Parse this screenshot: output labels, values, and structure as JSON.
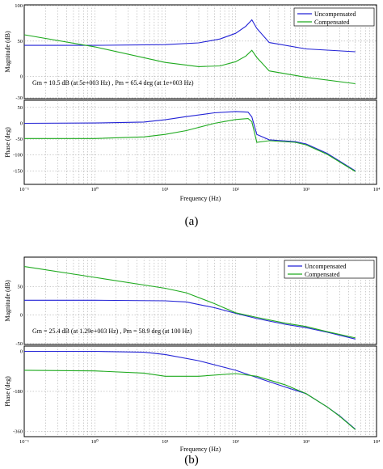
{
  "colors": {
    "uncompensated": "#2323d6",
    "compensated": "#1faa1f"
  },
  "chart_data": [
    {
      "id": "a",
      "caption": "(a)",
      "type": "line",
      "xscale": "log",
      "xlim": [
        0.1,
        10000
      ],
      "xticks": [
        {
          "v": 0.1,
          "label": "10⁻¹"
        },
        {
          "v": 1,
          "label": "10⁰"
        },
        {
          "v": 10,
          "label": "10¹"
        },
        {
          "v": 100,
          "label": "10²"
        },
        {
          "v": 1000,
          "label": "10³"
        },
        {
          "v": 10000,
          "label": "10⁴"
        }
      ],
      "xlabel": "Frequency  (Hz)",
      "annotation": "Gm = 10.5 dB (at 5e+003 Hz) ,  Pm = 65.4 deg (at 1e+003 Hz)",
      "legend": {
        "placement": "top-right",
        "entries": [
          "Uncompensated",
          "Compensated"
        ]
      },
      "magnitude": {
        "ylabel": "Magnitude (dB)",
        "ylim": [
          -30,
          100
        ],
        "yticks": [
          -30,
          0,
          50,
          100
        ],
        "series": [
          {
            "name": "Uncompensated",
            "x": [
              0.1,
              1,
              10,
              30,
              60,
              100,
              140,
              170,
              200,
              300,
              1000,
              5000
            ],
            "y": [
              44,
              44,
              45,
              47.5,
              53,
              61,
              71,
              80,
              68,
              48,
              39,
              35
            ]
          },
          {
            "name": "Compensated",
            "x": [
              0.1,
              1,
              10,
              30,
              60,
              100,
              140,
              170,
              200,
              300,
              1000,
              5000
            ],
            "y": [
              59,
              42,
              20,
              14,
              15,
              21,
              29,
              37,
              27,
              8,
              -1,
              -10
            ]
          }
        ]
      },
      "phase": {
        "ylabel": "Phase (deg)",
        "ylim": [
          -190,
          70
        ],
        "yticks": [
          -150,
          -100,
          -50,
          0,
          50
        ],
        "series": [
          {
            "name": "Uncompensated",
            "x": [
              0.1,
              1,
              5,
              10,
              20,
              50,
              100,
              150,
              170,
              200,
              300,
              700,
              1000,
              2000,
              5000
            ],
            "y": [
              0,
              1,
              4,
              11,
              21,
              33,
              37,
              35,
              20,
              -35,
              -52,
              -58,
              -65,
              -95,
              -150
            ]
          },
          {
            "name": "Compensated",
            "x": [
              0.1,
              1,
              5,
              10,
              20,
              50,
              100,
              150,
              170,
              200,
              300,
              700,
              1000,
              2000,
              5000
            ],
            "y": [
              -48,
              -48,
              -43,
              -35,
              -23,
              0,
              12,
              15,
              5,
              -60,
              -55,
              -60,
              -68,
              -98,
              -152
            ]
          }
        ]
      }
    },
    {
      "id": "b",
      "caption": "(b)",
      "type": "line",
      "xscale": "log",
      "xlim": [
        0.1,
        10000
      ],
      "xticks": [
        {
          "v": 0.1,
          "label": "10⁻¹"
        },
        {
          "v": 1,
          "label": "10⁰"
        },
        {
          "v": 10,
          "label": "10¹"
        },
        {
          "v": 100,
          "label": "10²"
        },
        {
          "v": 1000,
          "label": "10³"
        },
        {
          "v": 10000,
          "label": "10⁴"
        }
      ],
      "xlabel": "Frequency  (Hz)",
      "annotation": "Gm = 25.4 dB (at 1.29e+003 Hz) ,  Pm = 58.9 deg (at 100 Hz)",
      "legend": {
        "placement": "top-right",
        "entries": [
          "Uncompensated",
          "Compensated"
        ]
      },
      "magnitude": {
        "ylabel": "Magnitude (dB)",
        "ylim": [
          -50,
          100
        ],
        "yticks": [
          -50,
          0,
          50
        ],
        "series": [
          {
            "name": "Uncompensated",
            "x": [
              0.1,
              1,
              10,
              20,
              50,
              100,
              200,
              500,
              1000,
              2000,
              5000
            ],
            "y": [
              26,
              26,
              25,
              23,
              13,
              3,
              -6,
              -16,
              -22,
              -30,
              -42
            ]
          },
          {
            "name": "Compensated",
            "x": [
              0.1,
              1,
              10,
              20,
              50,
              100,
              200,
              500,
              1000,
              2000,
              5000
            ],
            "y": [
              85,
              66,
              47,
              39,
              20,
              4,
              -4,
              -14,
              -20,
              -29,
              -40
            ]
          }
        ]
      },
      "phase": {
        "ylabel": "Phase (deg)",
        "ylim": [
          -380,
          20
        ],
        "yticks": [
          0,
          -180,
          -360
        ],
        "series": [
          {
            "name": "Uncompensated",
            "x": [
              0.1,
              1,
              5,
              10,
              30,
              100,
              200,
              500,
              1000,
              2000,
              3000,
              5000
            ],
            "y": [
              0,
              0,
              -4,
              -14,
              -42,
              -85,
              -118,
              -160,
              -190,
              -250,
              -290,
              -350
            ]
          },
          {
            "name": "Compensated",
            "x": [
              0.1,
              1,
              5,
              10,
              30,
              100,
              200,
              500,
              1000,
              2000,
              3000,
              5000
            ],
            "y": [
              -85,
              -88,
              -98,
              -112,
              -112,
              -100,
              -112,
              -150,
              -190,
              -250,
              -292,
              -352
            ]
          }
        ]
      }
    }
  ]
}
